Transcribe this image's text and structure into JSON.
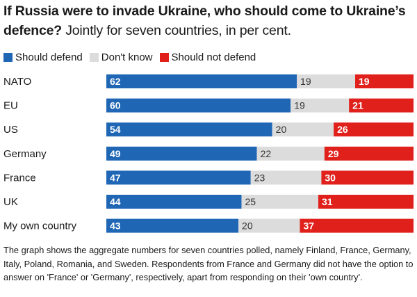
{
  "title": {
    "bold": "If Russia were to invade Ukraine, who should come to Ukraine’s defence?",
    "regular": "Jointly for seven countries, in per cent."
  },
  "colors": {
    "defend": "#1f66b5",
    "dont_know": "#dcdcdc",
    "not_defend": "#e0201b"
  },
  "legend": [
    {
      "label": "Should defend",
      "color": "#1f66b5"
    },
    {
      "label": "Don't know",
      "color": "#dcdcdc"
    },
    {
      "label": "Should not defend",
      "color": "#e0201b"
    }
  ],
  "chart_data": {
    "type": "bar",
    "orientation": "horizontal",
    "stacked": true,
    "title": "If Russia were to invade Ukraine, who should come to Ukraine’s defence? Jointly for seven countries, in per cent.",
    "categories": [
      "NATO",
      "EU",
      "US",
      "Germany",
      "France",
      "UK",
      "My own country"
    ],
    "series": [
      {
        "name": "Should defend",
        "values": [
          62,
          60,
          54,
          49,
          47,
          44,
          43
        ]
      },
      {
        "name": "Don't know",
        "values": [
          19,
          19,
          20,
          22,
          23,
          25,
          20
        ]
      },
      {
        "name": "Should not defend",
        "values": [
          19,
          21,
          26,
          29,
          30,
          31,
          37
        ]
      }
    ],
    "xlim": [
      0,
      100
    ],
    "legend": "top-left",
    "grid": false
  },
  "note": "The graph shows the aggregate numbers for seven countries polled, namely Finland, France, Germany, Italy, Poland, Romania, and Sweden. Respondents from France and Germany did not have the option to answer on 'France' or 'Germany', respectively, apart from responding on their 'own country'."
}
